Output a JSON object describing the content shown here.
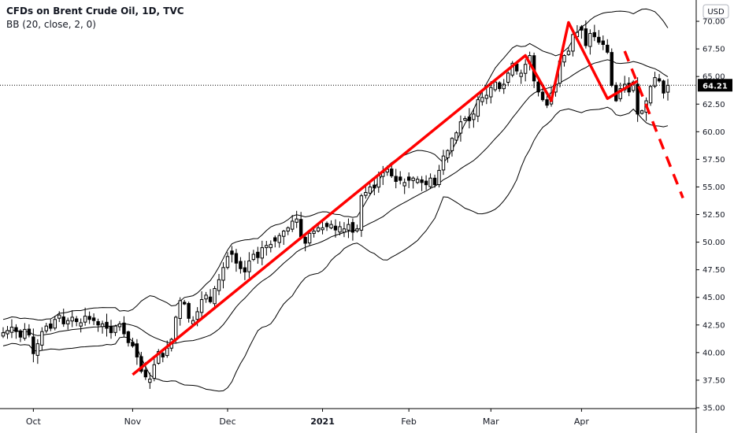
{
  "chart_data": {
    "type": "candlestick",
    "title": "CFDs on Brent Crude Oil, 1D, TVC",
    "indicator": "BB (20, close, 2, 0)",
    "currency": "USD",
    "last_price": "64.21",
    "ylim": [
      34,
      72
    ],
    "y_ticks": [
      "35.00",
      "37.50",
      "40.00",
      "42.50",
      "45.00",
      "47.50",
      "50.00",
      "52.50",
      "55.00",
      "57.50",
      "60.00",
      "62.50",
      "65.00",
      "67.50",
      "70.00"
    ],
    "x_labels": [
      "Oct",
      "Nov",
      "Dec",
      "2021",
      "Feb",
      "Mar",
      "Apr"
    ],
    "colors": {
      "bull": "#ffffff",
      "bear": "#000000",
      "wick": "#000000",
      "bands": "#000000",
      "annotation": "#ff0000",
      "price_line": "#000000"
    },
    "close_series": [
      41.8,
      42.0,
      42.3,
      41.9,
      41.4,
      42.1,
      41.6,
      39.9,
      40.8,
      41.9,
      42.4,
      42.2,
      43.0,
      43.4,
      42.6,
      42.9,
      43.2,
      42.8,
      42.7,
      43.3,
      43.0,
      42.9,
      42.5,
      42.6,
      42.2,
      41.8,
      42.4,
      42.6,
      41.7,
      40.9,
      40.6,
      39.6,
      38.3,
      37.8,
      37.6,
      38.9,
      40.1,
      39.6,
      40.4,
      41.2,
      43.2,
      44.7,
      44.4,
      43.1,
      42.9,
      43.7,
      44.8,
      45.2,
      44.6,
      45.8,
      46.6,
      47.7,
      48.7,
      48.9,
      48.1,
      47.6,
      47.3,
      48.3,
      48.9,
      48.6,
      49.5,
      49.7,
      49.8,
      50.1,
      50.6,
      51.0,
      51.3,
      51.9,
      52.1,
      50.5,
      49.9,
      50.8,
      51.0,
      51.3,
      51.3,
      51.4,
      51.6,
      51.1,
      51.4,
      51.2,
      51.6,
      50.9,
      51.2,
      54.2,
      54.5,
      55.0,
      54.9,
      56.1,
      56.3,
      56.6,
      56.0,
      55.5,
      55.6,
      55.4,
      55.6,
      55.8,
      55.7,
      55.4,
      55.2,
      55.8,
      55.2,
      56.5,
      57.8,
      58.3,
      59.4,
      59.9,
      60.9,
      61.2,
      61.0,
      61.6,
      62.9,
      63.1,
      63.3,
      64.0,
      64.5,
      63.9,
      64.3,
      65.3,
      66.2,
      65.5,
      65.3,
      66.1,
      66.9,
      64.6,
      63.6,
      62.9,
      62.4,
      63.5,
      64.3,
      66.4,
      66.9,
      67.3,
      68.8,
      69.0,
      69.2,
      67.8,
      68.9,
      68.6,
      68.1,
      67.9,
      67.2,
      64.2,
      62.8,
      63.9,
      64.3,
      63.6,
      64.5,
      61.6,
      61.9,
      62.8,
      64.1,
      64.9,
      64.6,
      63.5,
      64.2
    ],
    "annotation_path": [
      [
        38.0
      ],
      [
        66.9
      ],
      [
        62.8
      ],
      [
        69.9
      ],
      [
        63.0
      ],
      [
        64.6
      ]
    ],
    "dashed_projection": [
      [
        67.3
      ],
      [
        54.0
      ]
    ]
  }
}
